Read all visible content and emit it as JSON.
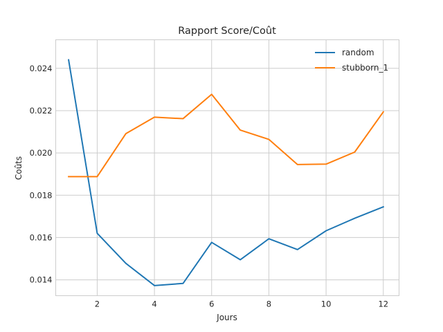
{
  "chart_data": {
    "type": "line",
    "title": "Rapport Score/Coût",
    "xlabel": "Jours",
    "ylabel": "Coûts",
    "xlim": [
      0.55,
      12.55
    ],
    "ylim": [
      0.01325,
      0.02535
    ],
    "xticks": [
      2,
      4,
      6,
      8,
      10,
      12
    ],
    "yticks": [
      0.014,
      0.016,
      0.018,
      0.02,
      0.022,
      0.024
    ],
    "ytick_labels": [
      "0.014",
      "0.016",
      "0.018",
      "0.020",
      "0.022",
      "0.024"
    ],
    "grid": true,
    "legend_position": "top-right",
    "x": [
      1,
      2,
      3,
      4,
      5,
      6,
      7,
      8,
      9,
      10,
      11,
      12
    ],
    "series": [
      {
        "name": "random",
        "color": "#1f77b4",
        "values": [
          0.0244,
          0.0162,
          0.01478,
          0.01373,
          0.01383,
          0.01577,
          0.01495,
          0.01594,
          0.01543,
          0.01632,
          0.01691,
          0.01745
        ]
      },
      {
        "name": "stubborn_1",
        "color": "#ff7f0e",
        "values": [
          0.01888,
          0.01888,
          0.02091,
          0.02169,
          0.02162,
          0.02277,
          0.02108,
          0.02064,
          0.01945,
          0.01947,
          0.02004,
          0.02194
        ]
      }
    ]
  }
}
